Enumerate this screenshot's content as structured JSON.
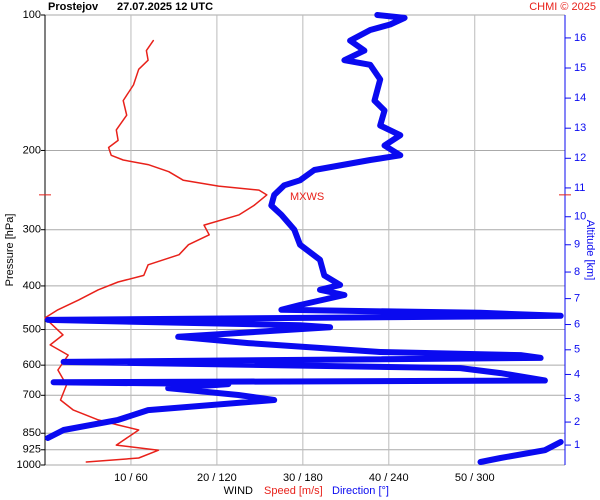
{
  "chart_data": {
    "type": "wind-profile",
    "title": "Prostejov",
    "subtitle": "27.07.2025 12 UTC",
    "credit": "CHMI © 2025",
    "xlabel_prefix": "WIND",
    "ylabel": "Pressure [hPa]",
    "y2label": "Altitude [km]",
    "ylim": [
      1000,
      100
    ],
    "yscale": "log",
    "yticks": [
      100,
      200,
      300,
      400,
      500,
      600,
      700,
      850,
      925,
      1000
    ],
    "xlim": [
      0,
      60.5
    ],
    "x2lim": [
      0,
      363
    ],
    "xticks": [
      {
        "value": 10,
        "label": "10 / 60"
      },
      {
        "value": 20,
        "label": "20 / 120"
      },
      {
        "value": 30,
        "label": "30 / 180"
      },
      {
        "value": 40,
        "label": "40 / 240"
      },
      {
        "value": 50,
        "label": "50 / 300"
      }
    ],
    "y2ticks": [
      1,
      2,
      3,
      4,
      5,
      6,
      7,
      8,
      9,
      10,
      11,
      12,
      13,
      14,
      15,
      16
    ],
    "grid": true,
    "series": [
      {
        "name": "Speed [m/s]",
        "color": "#e8211a",
        "pressure": [
          114,
          120,
          126,
          132,
          143,
          155,
          167,
          180,
          190,
          197,
          205,
          210,
          215,
          223,
          233,
          240,
          245,
          251,
          265,
          278,
          293,
          308,
          324,
          341,
          359,
          379,
          392,
          408,
          430,
          452,
          471,
          489,
          514,
          541,
          570,
          615,
          664,
          717,
          755,
          794,
          815,
          836,
          903,
          927,
          965,
          985
        ],
        "values": [
          12.6,
          11.8,
          12.0,
          10.9,
          10.3,
          9.1,
          9.5,
          8.3,
          8.5,
          7.4,
          7.7,
          9.1,
          12.0,
          14.4,
          16.1,
          20.2,
          24.9,
          25.8,
          24.3,
          22.6,
          18.5,
          19.1,
          16.7,
          15.6,
          12.0,
          11.5,
          8.5,
          6.2,
          3.9,
          1.5,
          0.0,
          0.9,
          2.1,
          0.6,
          2.7,
          1.5,
          2.5,
          1.8,
          3.3,
          6.2,
          8.5,
          10.9,
          8.3,
          13.2,
          10.9,
          4.8
        ]
      },
      {
        "name": "Direction [°]",
        "color": "#0a0af0",
        "axis": "x2",
        "pressure": [
          100,
          101.5,
          105,
          108,
          114,
          120,
          126,
          129,
          139,
          155,
          163,
          176,
          185,
          195,
          205,
          210,
          221,
          233,
          239,
          251,
          265,
          278,
          300,
          324,
          350,
          379,
          398,
          408,
          419,
          441,
          452,
          459,
          466,
          476,
          489,
          494,
          519,
          536,
          561,
          570,
          578,
          590,
          609,
          625,
          649,
          655,
          661,
          675,
          699,
          717,
          755,
          794,
          836,
          871,
          885,
          889,
          927,
          965,
          985
        ],
        "values": [
          232,
          251,
          241,
          227,
          213,
          223,
          209,
          227,
          234,
          230,
          237,
          234,
          248,
          237,
          248,
          227,
          188,
          178,
          167,
          160,
          158,
          165,
          174,
          178,
          192,
          195,
          206,
          192,
          209,
          178,
          165,
          304,
          360,
          2,
          178,
          199,
          93,
          142,
          234,
          332,
          346,
          13,
          290,
          318,
          349,
          6,
          128,
          86,
          135,
          160,
          72,
          51,
          13,
          2,
          null,
          360,
          349,
          318,
          304
        ]
      }
    ],
    "annotations": [
      {
        "text": "MXWS",
        "pressure": 251
      }
    ]
  }
}
